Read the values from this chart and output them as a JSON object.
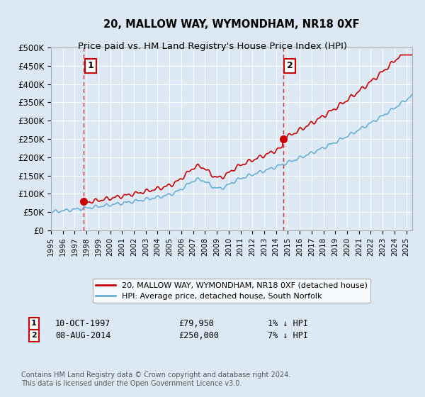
{
  "title": "20, MALLOW WAY, WYMONDHAM, NR18 0XF",
  "subtitle": "Price paid vs. HM Land Registry's House Price Index (HPI)",
  "bg_color": "#dce9f5",
  "plot_bg_color": "#dce9f5",
  "hpi_color": "#6baed6",
  "price_color": "#cc0000",
  "marker_color": "#cc0000",
  "annotation_color": "#cc0000",
  "vline_color": "#cc0000",
  "grid_color": "#ffffff",
  "legend_box_color": "#ffffff",
  "transaction1_date": "10-OCT-1997",
  "transaction1_price": 79950,
  "transaction1_label": "1",
  "transaction1_hpi_pct": "1% ↓ HPI",
  "transaction2_date": "08-AUG-2014",
  "transaction2_price": 250000,
  "transaction2_label": "2",
  "transaction2_hpi_pct": "7% ↓ HPI",
  "legend_line1": "20, MALLOW WAY, WYMONDHAM, NR18 0XF (detached house)",
  "legend_line2": "HPI: Average price, detached house, South Norfolk",
  "footer": "Contains HM Land Registry data © Crown copyright and database right 2024.\nThis data is licensed under the Open Government Licence v3.0.",
  "xmin": 1995.0,
  "xmax": 2025.5,
  "ymin": 0,
  "ymax": 500000,
  "yticks": [
    0,
    50000,
    100000,
    150000,
    200000,
    250000,
    300000,
    350000,
    400000,
    450000,
    500000
  ],
  "ytick_labels": [
    "£0",
    "£50K",
    "£100K",
    "£150K",
    "£200K",
    "£250K",
    "£300K",
    "£350K",
    "£400K",
    "£450K",
    "£500K"
  ]
}
